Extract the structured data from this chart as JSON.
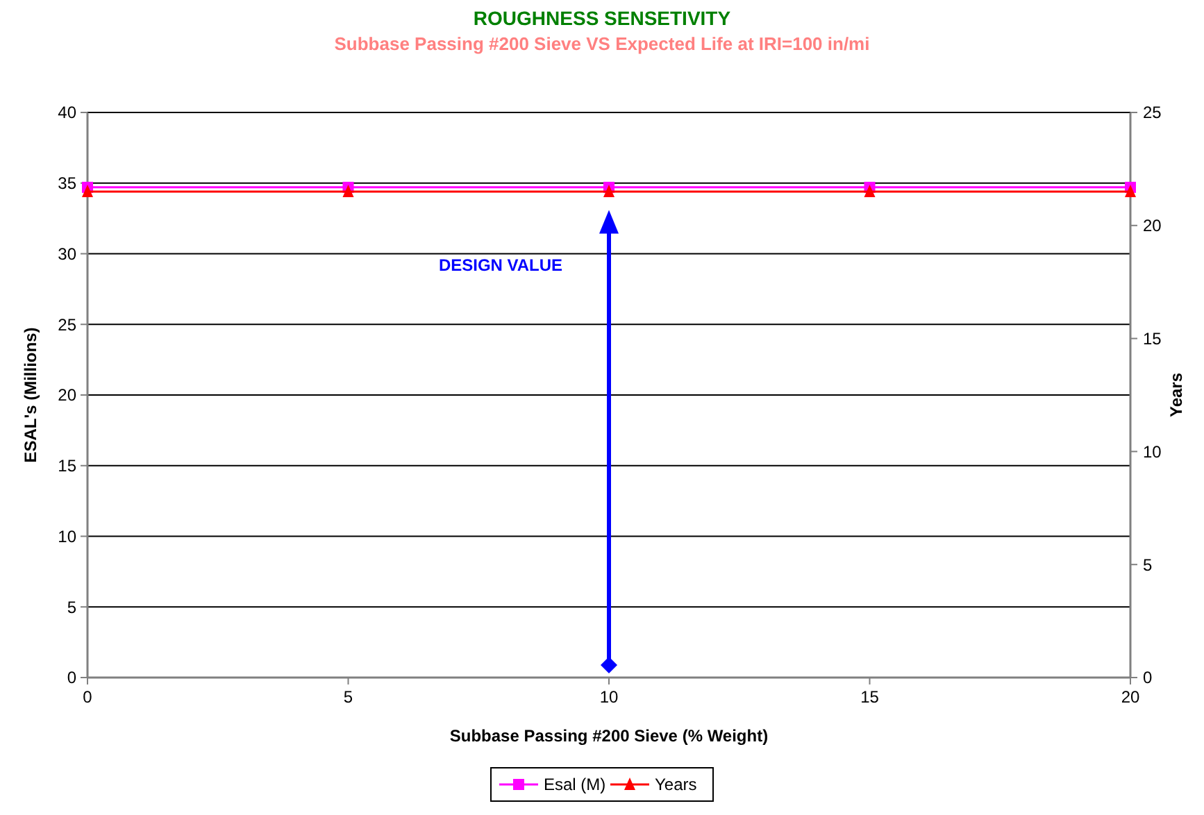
{
  "chart_data": {
    "type": "line",
    "title": "ROUGHNESS SENSETIVITY",
    "subtitle": "Subbase Passing #200 Sieve VS Expected Life at IRI=100 in/mi",
    "xlabel": "Subbase Passing #200 Sieve (% Weight)",
    "ylabel": "ESAL's (Millions)",
    "y2label": "Years",
    "x": [
      0,
      5,
      10,
      15,
      20
    ],
    "series": [
      {
        "name": "Esal (M)",
        "color": "#ff00ff",
        "values": [
          34.7,
          34.7,
          34.7,
          34.7,
          34.7
        ],
        "marker": "square"
      },
      {
        "name": "Years",
        "color": "#ff0000",
        "values": [
          21.5,
          21.5,
          21.5,
          21.5,
          21.5
        ],
        "marker": "triangle",
        "axis": "y2"
      }
    ],
    "xlim": [
      0,
      20
    ],
    "xticks": [
      0,
      5,
      10,
      15,
      20
    ],
    "ylim": [
      0,
      40
    ],
    "yticks": [
      0,
      5,
      10,
      15,
      20,
      25,
      30,
      35,
      40
    ],
    "y2lim": [
      0,
      25
    ],
    "y2ticks": [
      0,
      5,
      10,
      15,
      20,
      25
    ],
    "ref_lines": [
      {
        "axis": "x",
        "value": 10,
        "label": "DESIGN VALUE",
        "color": "#0000ff"
      }
    ],
    "grid": "y",
    "legend": "bottom"
  }
}
